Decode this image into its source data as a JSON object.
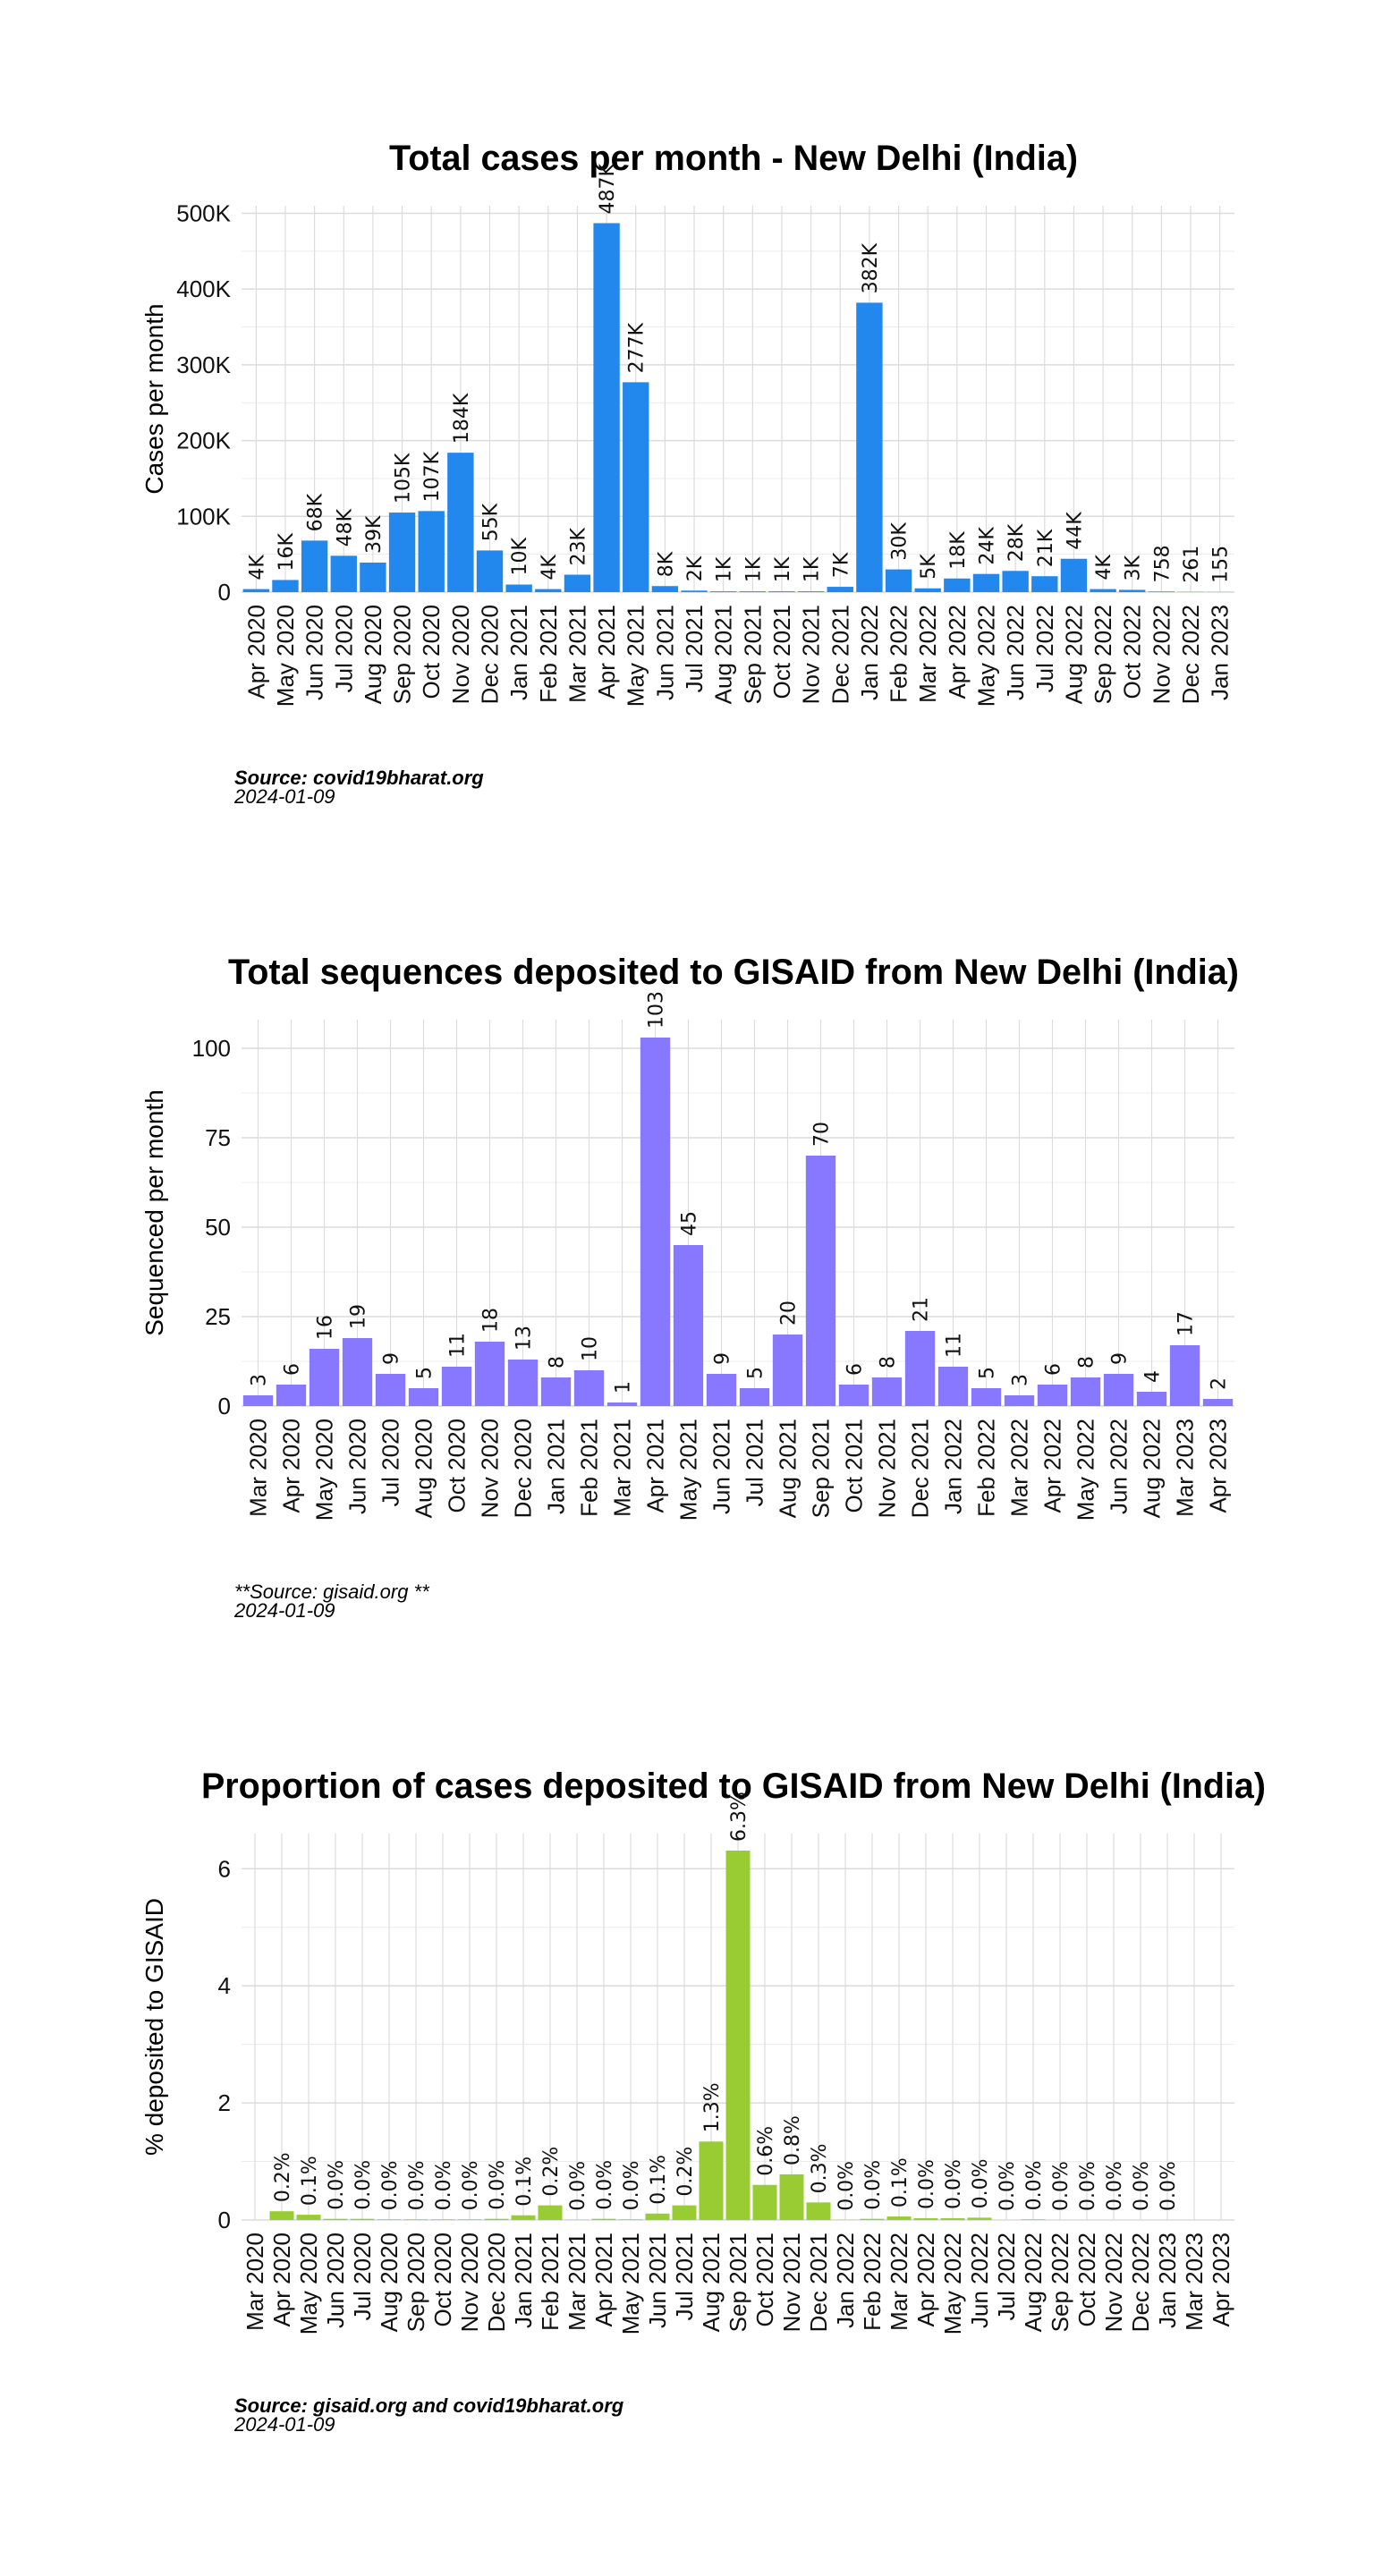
{
  "chart_data": [
    {
      "type": "bar",
      "title": "Total cases per month - New Delhi (India)",
      "ylabel": "Cases per month",
      "color": "#2288ee",
      "ylim": [
        0,
        510000
      ],
      "yticks": [
        0,
        100000,
        200000,
        300000,
        400000,
        500000
      ],
      "ytick_labels": [
        "0",
        "100K",
        "200K",
        "300K",
        "400K",
        "500K"
      ],
      "grid": true,
      "source": "Source: covid19bharat.org",
      "source_bold": true,
      "date": "2024-01-09",
      "categories": [
        "Apr 2020",
        "May 2020",
        "Jun 2020",
        "Jul 2020",
        "Aug 2020",
        "Sep 2020",
        "Oct 2020",
        "Nov 2020",
        "Dec 2020",
        "Jan 2021",
        "Feb 2021",
        "Mar 2021",
        "Apr 2021",
        "May 2021",
        "Jun 2021",
        "Jul 2021",
        "Aug 2021",
        "Sep 2021",
        "Oct 2021",
        "Nov 2021",
        "Dec 2021",
        "Jan 2022",
        "Feb 2022",
        "Mar 2022",
        "Apr 2022",
        "May 2022",
        "Jun 2022",
        "Jul 2022",
        "Aug 2022",
        "Sep 2022",
        "Oct 2022",
        "Nov 2022",
        "Dec 2022",
        "Jan 2023"
      ],
      "values": [
        4000,
        16000,
        68000,
        48000,
        39000,
        105000,
        107000,
        184000,
        55000,
        10000,
        4000,
        23000,
        487000,
        277000,
        8000,
        2000,
        1000,
        1000,
        1000,
        1000,
        7000,
        382000,
        30000,
        5000,
        18000,
        24000,
        28000,
        21000,
        44000,
        4000,
        3000,
        758,
        261,
        155
      ],
      "labels": [
        "4K",
        "16K",
        "68K",
        "48K",
        "39K",
        "105K",
        "107K",
        "184K",
        "55K",
        "10K",
        "4K",
        "23K",
        "487K",
        "277K",
        "8K",
        "2K",
        "1K",
        "1K",
        "1K",
        "1K",
        "7K",
        "382K",
        "30K",
        "5K",
        "18K",
        "24K",
        "28K",
        "21K",
        "44K",
        "4K",
        "3K",
        "758",
        "261",
        "155"
      ]
    },
    {
      "type": "bar",
      "title": "Total sequences deposited to GISAID from New Delhi (India)",
      "ylabel": "Sequenced per month",
      "color": "#8877ff",
      "ylim": [
        0,
        108
      ],
      "yticks": [
        0,
        25,
        50,
        75,
        100
      ],
      "ytick_labels": [
        "0",
        "25",
        "50",
        "75",
        "100"
      ],
      "grid": true,
      "source": "**Source: gisaid.org **",
      "source_bold": false,
      "date": "2024-01-09",
      "categories": [
        "Mar 2020",
        "Apr 2020",
        "May 2020",
        "Jun 2020",
        "Jul 2020",
        "Aug 2020",
        "Oct 2020",
        "Nov 2020",
        "Dec 2020",
        "Jan 2021",
        "Feb 2021",
        "Mar 2021",
        "Apr 2021",
        "May 2021",
        "Jun 2021",
        "Jul 2021",
        "Aug 2021",
        "Sep 2021",
        "Oct 2021",
        "Nov 2021",
        "Dec 2021",
        "Jan 2022",
        "Feb 2022",
        "Mar 2022",
        "Apr 2022",
        "May 2022",
        "Jun 2022",
        "Aug 2022",
        "Mar 2023",
        "Apr 2023"
      ],
      "values": [
        3,
        6,
        16,
        19,
        9,
        5,
        11,
        18,
        13,
        8,
        10,
        1,
        103,
        45,
        9,
        5,
        20,
        70,
        6,
        8,
        21,
        11,
        5,
        3,
        6,
        8,
        9,
        4,
        17,
        2
      ],
      "labels": [
        "3",
        "6",
        "16",
        "19",
        "9",
        "5",
        "11",
        "18",
        "13",
        "8",
        "10",
        "1",
        "103",
        "45",
        "9",
        "5",
        "20",
        "70",
        "6",
        "8",
        "21",
        "11",
        "5",
        "3",
        "6",
        "8",
        "9",
        "4",
        "17",
        "2"
      ]
    },
    {
      "type": "bar",
      "title": "Proportion of cases deposited to GISAID from New Delhi (India)",
      "ylabel": "%  deposited to GISAID",
      "color": "#99cc33",
      "ylim": [
        0,
        6.6
      ],
      "yticks": [
        0,
        2,
        4,
        6
      ],
      "ytick_labels": [
        "0",
        "2",
        "4",
        "6"
      ],
      "grid": true,
      "source": "Source: gisaid.org and covid19bharat.org",
      "source_bold": true,
      "date": "2024-01-09",
      "categories": [
        "Mar 2020",
        "Apr 2020",
        "May 2020",
        "Jun 2020",
        "Jul 2020",
        "Aug 2020",
        "Sep 2020",
        "Oct 2020",
        "Nov 2020",
        "Dec 2020",
        "Jan 2021",
        "Feb 2021",
        "Mar 2021",
        "Apr 2021",
        "May 2021",
        "Jun 2021",
        "Jul 2021",
        "Aug 2021",
        "Sep 2021",
        "Oct 2021",
        "Nov 2021",
        "Dec 2021",
        "Jan 2022",
        "Feb 2022",
        "Mar 2022",
        "Apr 2022",
        "May 2022",
        "Jun 2022",
        "Jul 2022",
        "Aug 2022",
        "Sep 2022",
        "Oct 2022",
        "Nov 2022",
        "Dec 2022",
        "Jan 2023",
        "Mar 2023",
        "Apr 2023"
      ],
      "values": [
        null,
        0.15,
        0.09,
        0.02,
        0.02,
        0.01,
        0.01,
        0.01,
        0.01,
        0.02,
        0.08,
        0.25,
        0.004,
        0.02,
        0.01,
        0.11,
        0.25,
        1.34,
        6.31,
        0.6,
        0.78,
        0.3,
        0.003,
        0.02,
        0.06,
        0.03,
        0.03,
        0.04,
        0.0,
        0.01,
        0.0,
        0.0,
        0.0,
        0.0,
        0.0,
        null,
        null
      ],
      "labels": [
        "",
        "0.2%",
        "0.1%",
        "0.0%",
        "0.0%",
        "0.0%",
        "0.0%",
        "0.0%",
        "0.0%",
        "0.0%",
        "0.1%",
        "0.2%",
        "0.0%",
        "0.0%",
        "0.0%",
        "0.1%",
        "0.2%",
        "1.3%",
        "6.3%",
        "0.6%",
        "0.8%",
        "0.3%",
        "0.0%",
        "0.0%",
        "0.1%",
        "0.0%",
        "0.0%",
        "0.0%",
        "0.0%",
        "0.0%",
        "0.0%",
        "0.0%",
        "0.0%",
        "0.0%",
        "0.0%",
        "",
        ""
      ]
    }
  ]
}
